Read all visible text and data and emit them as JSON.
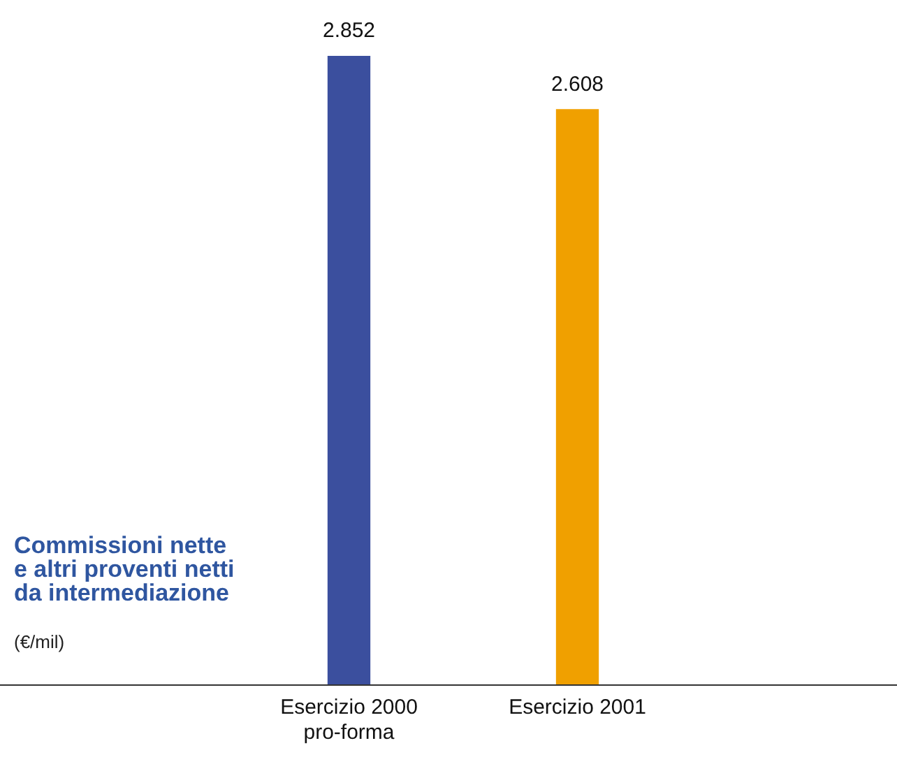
{
  "chart_data": {
    "type": "bar",
    "title": "Commissioni nette e altri proventi netti da intermediazione",
    "subtitle": "(€/mil)",
    "categories": [
      "Esercizio 2000 pro-forma",
      "Esercizio 2001"
    ],
    "values": [
      2852,
      2608
    ],
    "colors": [
      "#3b4f9e",
      "#f0a000"
    ],
    "value_labels": [
      "2.852",
      "2.608"
    ],
    "legend": false,
    "grid": false
  }
}
